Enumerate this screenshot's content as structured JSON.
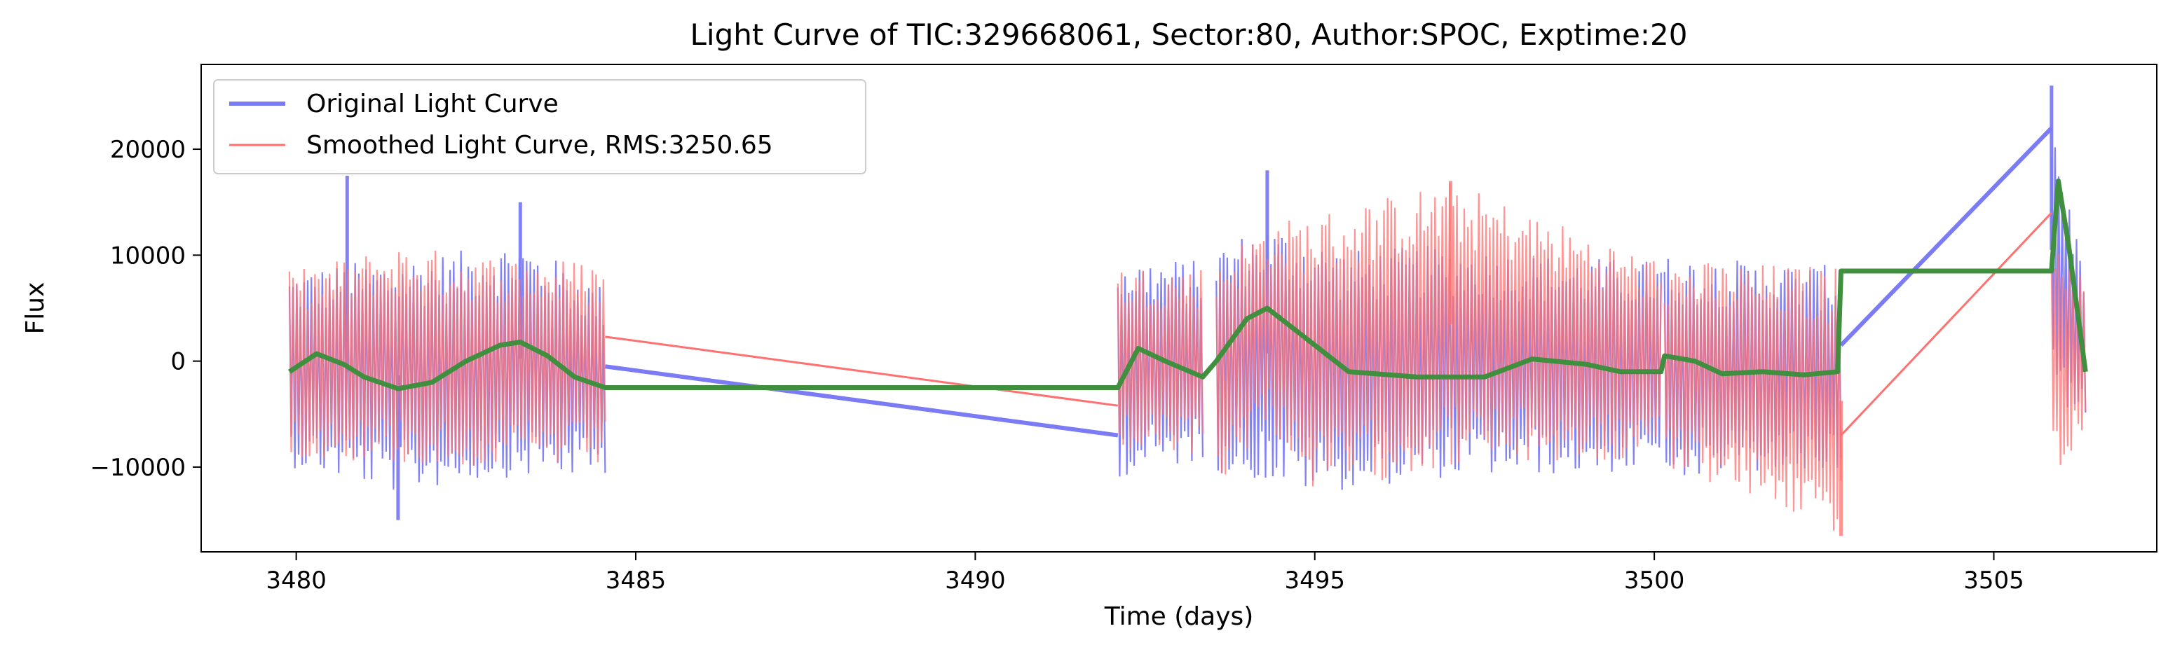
{
  "chart_data": {
    "type": "line",
    "title": "Light Curve of TIC:329668061, Sector:80, Author:SPOC, Exptime:20",
    "xlabel": "Time (days)",
    "ylabel": "Flux",
    "xlim": [
      3478.6,
      3507.4
    ],
    "ylim": [
      -18000,
      28000
    ],
    "x_ticks": [
      3480,
      3485,
      3490,
      3495,
      3500,
      3505
    ],
    "y_ticks": [
      -10000,
      0,
      10000,
      20000
    ],
    "y_tick_labels": [
      "−10000",
      "0",
      "10000",
      "20000"
    ],
    "legend_position": "upper left",
    "grid": false,
    "segments": [
      [
        3479.9,
        3484.55
      ],
      [
        3492.1,
        3493.35
      ],
      [
        3493.55,
        3500.1
      ],
      [
        3500.15,
        3502.75
      ],
      [
        3505.85,
        3506.35
      ]
    ],
    "series": [
      {
        "name": "Original Light Curve",
        "color": "#7b7bf5",
        "envelope_upper": [
          [
            3479.9,
            8500
          ],
          [
            3481.0,
            9500
          ],
          [
            3482.5,
            10500
          ],
          [
            3483.3,
            11500
          ],
          [
            3484.55,
            7000
          ],
          [
            3492.1,
            10000
          ],
          [
            3493.35,
            9500
          ],
          [
            3493.55,
            11000
          ],
          [
            3494.3,
            13000
          ],
          [
            3495.5,
            10500
          ],
          [
            3497.0,
            11000
          ],
          [
            3498.5,
            10000
          ],
          [
            3500.1,
            9500
          ],
          [
            3500.15,
            10000
          ],
          [
            3502.75,
            9000
          ],
          [
            3505.85,
            24000
          ],
          [
            3506.35,
            8000
          ]
        ],
        "envelope_lower": [
          [
            3479.9,
            -10000
          ],
          [
            3481.5,
            -12500
          ],
          [
            3483.0,
            -11000
          ],
          [
            3484.55,
            -11000
          ],
          [
            3492.1,
            -11000
          ],
          [
            3493.35,
            -9500
          ],
          [
            3493.55,
            -10500
          ],
          [
            3495.0,
            -12500
          ],
          [
            3497.0,
            -11000
          ],
          [
            3500.1,
            -10500
          ],
          [
            3500.15,
            -11000
          ],
          [
            3502.75,
            -10500
          ],
          [
            3505.85,
            -3000
          ],
          [
            3506.35,
            -6500
          ]
        ],
        "gap_bridges": [
          [
            [
              3484.55,
              -500
            ],
            [
              3492.1,
              -7000
            ]
          ],
          [
            [
              3502.75,
              1500
            ],
            [
              3505.85,
              22000
            ]
          ]
        ],
        "spikes": [
          [
            3480.75,
            17500
          ],
          [
            3483.3,
            15000
          ],
          [
            3494.3,
            18000
          ],
          [
            3505.85,
            26000
          ],
          [
            3481.5,
            -15000
          ]
        ]
      },
      {
        "name": "Smoothed Light Curve, RMS:3250.65",
        "color": "#ff7070",
        "envelope_upper": [
          [
            3479.9,
            8500
          ],
          [
            3481.5,
            11000
          ],
          [
            3482.8,
            10000
          ],
          [
            3484.55,
            9500
          ],
          [
            3492.1,
            9000
          ],
          [
            3493.35,
            9000
          ],
          [
            3493.55,
            10000
          ],
          [
            3494.3,
            13000
          ],
          [
            3497.0,
            17000
          ],
          [
            3500.1,
            9500
          ],
          [
            3500.15,
            9500
          ],
          [
            3502.75,
            9000
          ],
          [
            3505.85,
            15000
          ],
          [
            3506.35,
            7000
          ]
        ],
        "envelope_lower": [
          [
            3479.9,
            -9000
          ],
          [
            3482.0,
            -10000
          ],
          [
            3484.55,
            -10000
          ],
          [
            3492.1,
            -9000
          ],
          [
            3493.35,
            -9000
          ],
          [
            3493.55,
            -12000
          ],
          [
            3494.3,
            -6000
          ],
          [
            3495.0,
            -12500
          ],
          [
            3497.0,
            -10000
          ],
          [
            3500.1,
            -9500
          ],
          [
            3500.15,
            -10000
          ],
          [
            3502.75,
            -16500
          ],
          [
            3505.85,
            -12500
          ],
          [
            3506.35,
            -7000
          ]
        ],
        "gap_bridges": [
          [
            [
              3484.55,
              2300
            ],
            [
              3492.1,
              -4200
            ]
          ],
          [
            [
              3502.75,
              -7000
            ],
            [
              3505.85,
              14000
            ]
          ]
        ],
        "spikes": [
          [
            3497.0,
            17000
          ],
          [
            3502.75,
            -16500
          ]
        ]
      },
      {
        "name": "",
        "color": "#3f8f3f",
        "points": [
          [
            3479.9,
            -1000
          ],
          [
            3480.3,
            700
          ],
          [
            3480.7,
            -300
          ],
          [
            3481.0,
            -1500
          ],
          [
            3481.5,
            -2600
          ],
          [
            3482.0,
            -2000
          ],
          [
            3482.5,
            0
          ],
          [
            3483.0,
            1500
          ],
          [
            3483.3,
            1800
          ],
          [
            3483.7,
            500
          ],
          [
            3484.1,
            -1500
          ],
          [
            3484.55,
            -2500
          ],
          [
            3492.1,
            -2500
          ],
          [
            3492.4,
            1200
          ],
          [
            3492.8,
            0
          ],
          [
            3493.35,
            -1500
          ],
          [
            3493.55,
            0
          ],
          [
            3494.0,
            4000
          ],
          [
            3494.3,
            5000
          ],
          [
            3494.8,
            2500
          ],
          [
            3495.5,
            -1000
          ],
          [
            3496.5,
            -1500
          ],
          [
            3497.5,
            -1500
          ],
          [
            3498.2,
            200
          ],
          [
            3499.0,
            -300
          ],
          [
            3499.5,
            -1000
          ],
          [
            3500.1,
            -1000
          ],
          [
            3500.15,
            500
          ],
          [
            3500.6,
            0
          ],
          [
            3501.0,
            -1200
          ],
          [
            3501.6,
            -1000
          ],
          [
            3502.2,
            -1300
          ],
          [
            3502.7,
            -1000
          ],
          [
            3502.75,
            8500
          ],
          [
            3505.85,
            8500
          ],
          [
            3505.95,
            17000
          ],
          [
            3506.1,
            11000
          ],
          [
            3506.35,
            -1000
          ]
        ]
      }
    ]
  }
}
